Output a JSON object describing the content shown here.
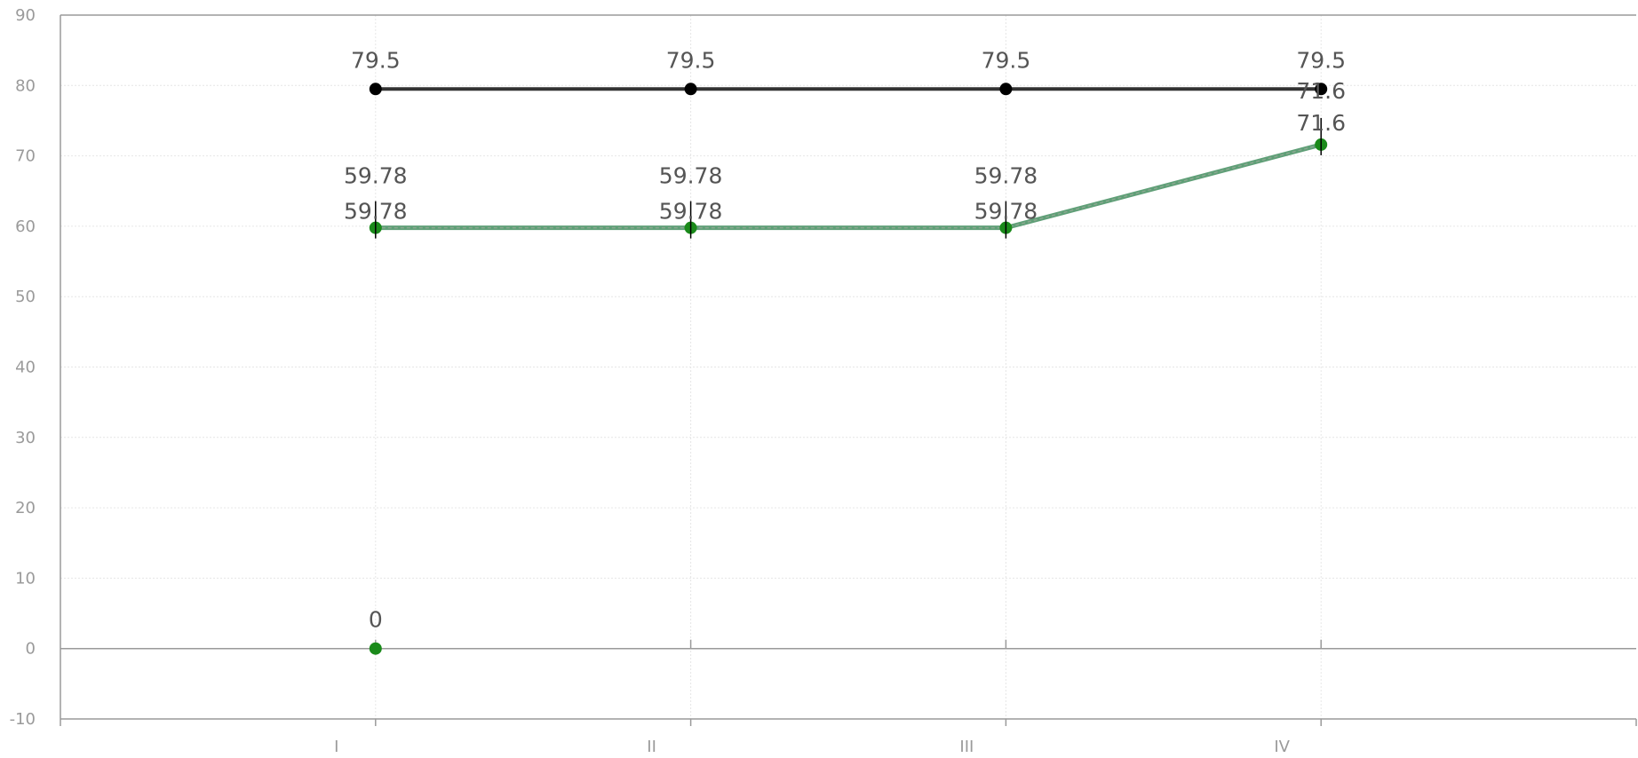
{
  "chart_data": {
    "type": "line",
    "categories": [
      "I",
      "II",
      "III",
      "IV"
    ],
    "ylim": [
      -10,
      90
    ],
    "yticks": [
      -10,
      0,
      10,
      20,
      30,
      40,
      50,
      60,
      70,
      80,
      90
    ],
    "grid": true,
    "series": [
      {
        "values": [
          79.5,
          79.5,
          79.5,
          79.5
        ],
        "labels": [
          "79.5",
          "79.5",
          "79.5",
          "79.5"
        ],
        "color": "#333333",
        "marker_color": "#000000",
        "style": "solid"
      },
      {
        "values": [
          59.78,
          59.78,
          59.78,
          71.6
        ],
        "labels": [
          "59.78",
          "59.78",
          "59.78",
          "71.6"
        ],
        "color": "#5f9f77",
        "marker_color": "#1a8a1a",
        "style": "dashed"
      },
      {
        "values": [
          59.78,
          59.78,
          59.78,
          71.6
        ],
        "labels": [
          "59.78",
          "59.78",
          "59.78",
          "71.6"
        ],
        "color": "#888888",
        "marker_color": "#333333",
        "style": "error-bars"
      },
      {
        "values": [
          0,
          null,
          null,
          null
        ],
        "labels": [
          "0",
          null,
          null,
          null
        ],
        "color": "#1a8a1a",
        "marker_color": "#1a8a1a",
        "style": "points"
      }
    ]
  }
}
